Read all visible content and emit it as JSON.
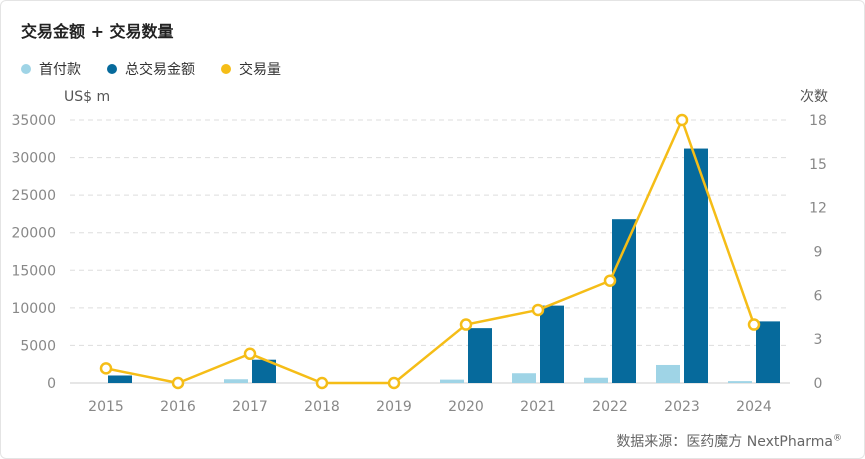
{
  "chart_data": {
    "type": "bar+line",
    "title": "交易金额 + 交易数量",
    "left_axis_unit": "US$ m",
    "right_axis_unit": "次数",
    "categories": [
      "2015",
      "2016",
      "2017",
      "2018",
      "2019",
      "2020",
      "2021",
      "2022",
      "2023",
      "2024"
    ],
    "left_ticks": [
      "0",
      "5000",
      "10000",
      "15000",
      "20000",
      "25000",
      "30000",
      "35000"
    ],
    "right_ticks": [
      "0",
      "3",
      "6",
      "9",
      "12",
      "15",
      "18"
    ],
    "ylim_left": [
      0,
      35000
    ],
    "ylim_right": [
      0,
      18
    ],
    "grid": true,
    "legend_position": "top-left",
    "series": [
      {
        "name": "首付款",
        "type": "bar",
        "axis": "left",
        "color": "#9fd4e6",
        "values": [
          0,
          0,
          500,
          0,
          0,
          450,
          1300,
          700,
          2400,
          250
        ]
      },
      {
        "name": "总交易金额",
        "type": "bar",
        "axis": "left",
        "color": "#066a9c",
        "values": [
          1000,
          0,
          3100,
          0,
          0,
          7300,
          10300,
          21800,
          31200,
          8200
        ]
      },
      {
        "name": "交易量",
        "type": "line",
        "axis": "right",
        "color": "#f5bd17",
        "values": [
          1,
          0,
          2,
          0,
          0,
          4,
          5,
          7,
          18,
          4
        ]
      }
    ]
  },
  "footer": {
    "source_label": "数据来源：",
    "source_name": "医药魔方 NextPharma",
    "registered": "®"
  }
}
